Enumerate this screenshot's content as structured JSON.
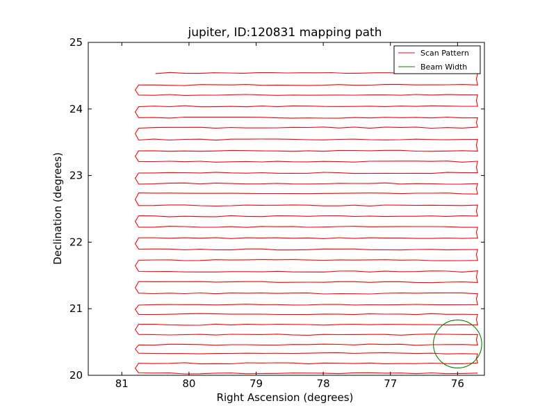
{
  "chart_data": {
    "type": "line",
    "title": "jupiter, ID:120831 mapping path",
    "xlabel": "Right Ascension (degrees)",
    "ylabel": "Declination (degrees)",
    "xlim": [
      81.5,
      75.6
    ],
    "ylim": [
      20,
      25
    ],
    "x_inverted": true,
    "xticks": [
      81,
      80,
      79,
      78,
      77,
      76
    ],
    "yticks": [
      20,
      21,
      22,
      23,
      24,
      25
    ],
    "grid": false,
    "legend": {
      "placement": "top-right",
      "entries": [
        "Scan Pattern",
        "Beam Width"
      ]
    },
    "series": [
      {
        "name": "Scan Pattern",
        "color": "#ff0000",
        "kind": "raster",
        "x_start": 80.5,
        "x_min": 80.75,
        "x_max": 75.7,
        "y_values": [
          24.54,
          24.36,
          24.21,
          24.04,
          23.87,
          23.72,
          23.54,
          23.37,
          23.21,
          23.04,
          22.88,
          22.73,
          22.55,
          22.39,
          22.23,
          22.06,
          21.89,
          21.73,
          21.56,
          21.4,
          21.23,
          21.06,
          20.92,
          20.76,
          20.61,
          20.46,
          20.33,
          20.18,
          20.03
        ]
      },
      {
        "name": "Beam Width",
        "color": "#008000",
        "kind": "circle",
        "center": [
          76.0,
          20.47
        ],
        "radius": 0.36
      }
    ]
  }
}
